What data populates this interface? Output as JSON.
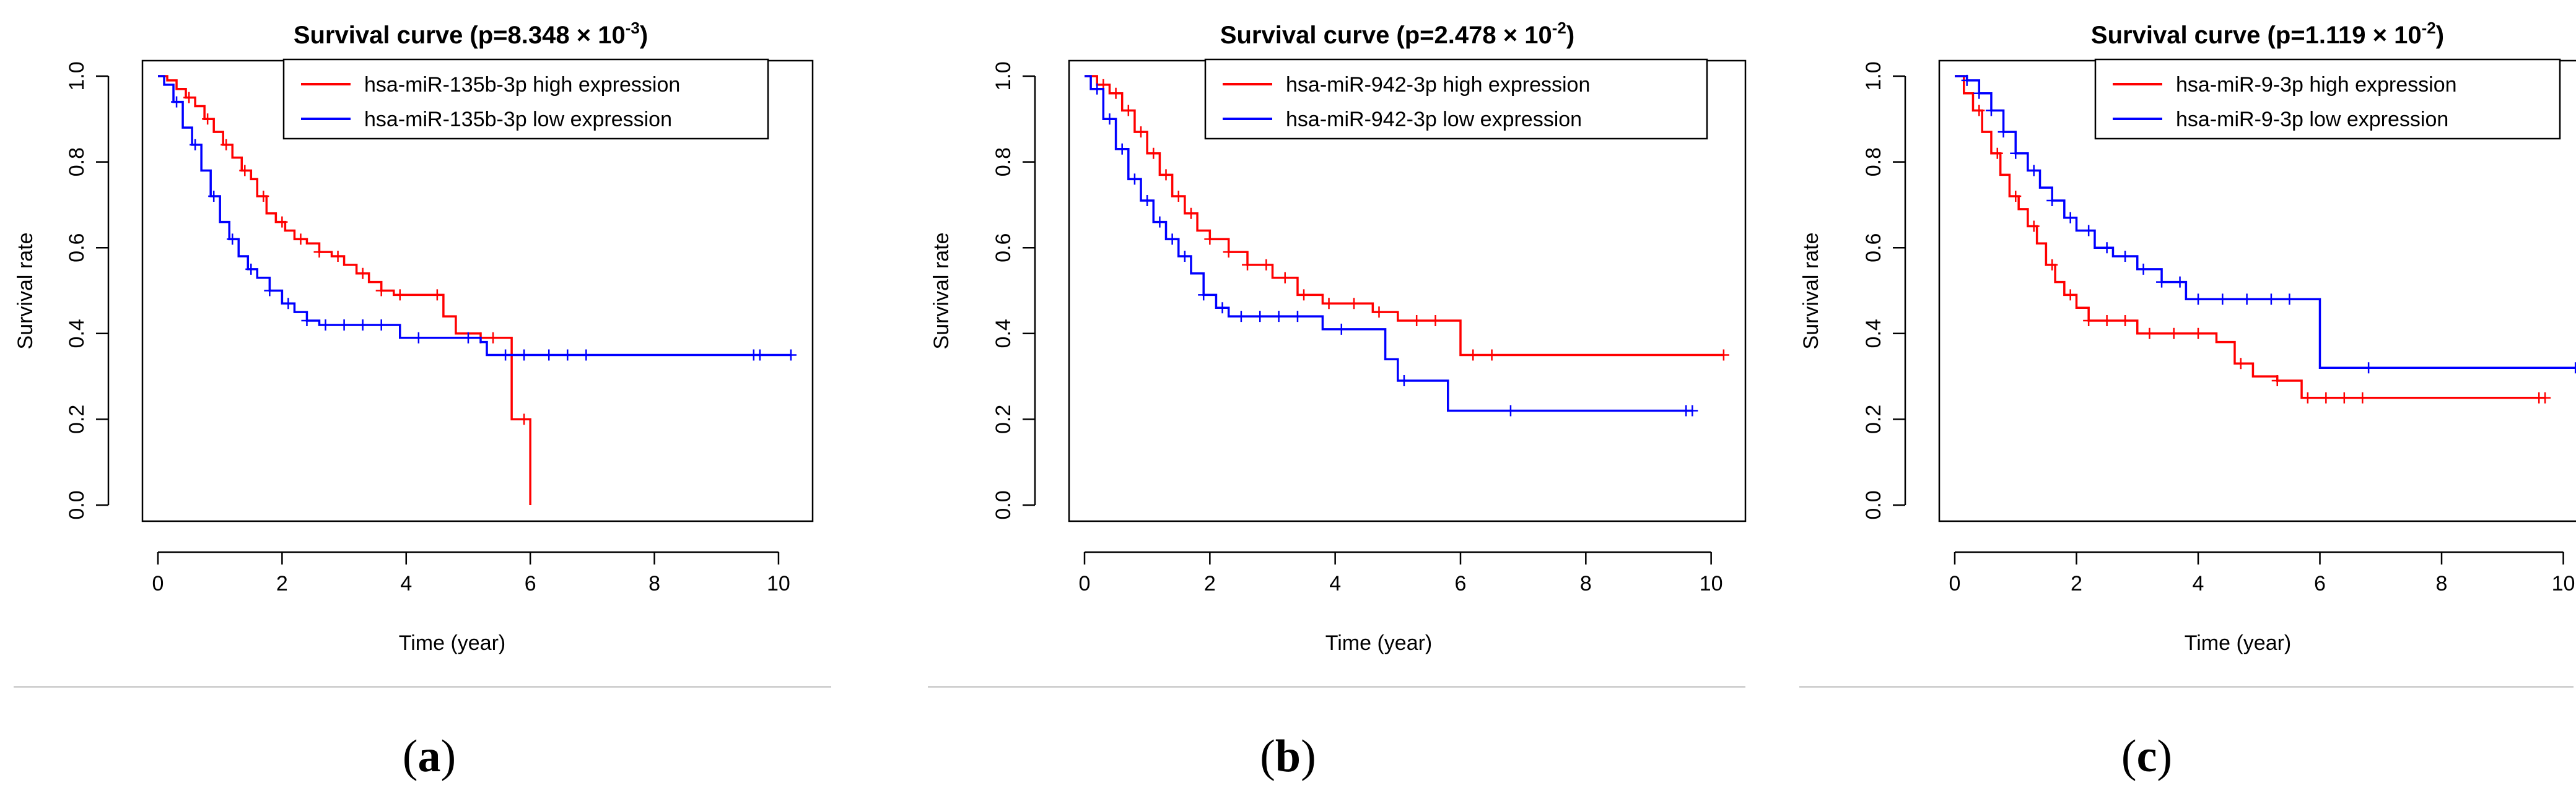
{
  "chart_data": [
    {
      "type": "line",
      "panel_label": "a",
      "title": {
        "main": "Survival curve (p=8.348 × 10",
        "exp": "-3",
        "close": ")"
      },
      "xlabel": "Time (year)",
      "ylabel": "Survival rate",
      "xlim": [
        0,
        10.3
      ],
      "ylim": [
        0,
        1
      ],
      "xticks": [
        0,
        2,
        4,
        6,
        8,
        10
      ],
      "yticks": [
        0.0,
        0.2,
        0.4,
        0.6,
        0.8,
        1.0
      ],
      "legend_position": "top-right",
      "series": [
        {
          "name": "hsa-miR-135b-3p high expression",
          "color": "#ff0000",
          "x": [
            0.0,
            0.15,
            0.3,
            0.45,
            0.6,
            0.75,
            0.9,
            1.05,
            1.2,
            1.35,
            1.5,
            1.6,
            1.75,
            1.9,
            2.05,
            2.2,
            2.4,
            2.6,
            2.8,
            3.0,
            3.2,
            3.4,
            3.6,
            3.8,
            4.6,
            4.8,
            5.2,
            5.7,
            5.95,
            6.0
          ],
          "y": [
            1.0,
            0.99,
            0.97,
            0.95,
            0.93,
            0.9,
            0.87,
            0.84,
            0.81,
            0.78,
            0.76,
            0.72,
            0.68,
            0.66,
            0.64,
            0.62,
            0.61,
            0.59,
            0.58,
            0.56,
            0.54,
            0.52,
            0.5,
            0.49,
            0.44,
            0.4,
            0.39,
            0.2,
            0.2,
            0.0
          ],
          "censor": [
            0.5,
            0.8,
            1.1,
            1.4,
            1.7,
            2.0,
            2.3,
            2.6,
            2.9,
            3.3,
            3.6,
            3.9,
            4.5,
            5.2,
            5.4,
            5.9
          ]
        },
        {
          "name": "hsa-miR-135b-3p low expression",
          "color": "#0000ff",
          "x": [
            0.0,
            0.1,
            0.25,
            0.4,
            0.55,
            0.7,
            0.85,
            1.0,
            1.15,
            1.3,
            1.45,
            1.6,
            1.8,
            2.0,
            2.2,
            2.4,
            2.6,
            3.0,
            3.9,
            5.2,
            5.3,
            10.2
          ],
          "y": [
            1.0,
            0.98,
            0.94,
            0.88,
            0.84,
            0.78,
            0.72,
            0.66,
            0.62,
            0.58,
            0.55,
            0.53,
            0.5,
            0.47,
            0.45,
            0.43,
            0.42,
            0.42,
            0.39,
            0.38,
            0.35,
            0.35
          ],
          "censor": [
            0.3,
            0.6,
            0.9,
            1.2,
            1.5,
            1.8,
            2.1,
            2.4,
            2.7,
            3.0,
            3.3,
            3.6,
            4.2,
            5.0,
            5.6,
            5.9,
            6.3,
            6.6,
            6.9,
            9.6,
            9.7,
            10.2
          ]
        }
      ]
    },
    {
      "type": "line",
      "panel_label": "b",
      "title": {
        "main": "Survival curve (p=2.478 × 10",
        "exp": "-2",
        "close": ")"
      },
      "xlabel": "Time (year)",
      "ylabel": "Survival rate",
      "xlim": [
        0,
        10.3
      ],
      "ylim": [
        0,
        1
      ],
      "xticks": [
        0,
        2,
        4,
        6,
        8,
        10
      ],
      "yticks": [
        0.0,
        0.2,
        0.4,
        0.6,
        0.8,
        1.0
      ],
      "legend_position": "top-right",
      "series": [
        {
          "name": "hsa-miR-942-3p high expression",
          "color": "#ff0000",
          "x": [
            0.0,
            0.2,
            0.4,
            0.6,
            0.8,
            1.0,
            1.2,
            1.4,
            1.6,
            1.8,
            2.0,
            2.3,
            2.6,
            3.0,
            3.4,
            3.8,
            4.6,
            5.0,
            6.0,
            10.2
          ],
          "y": [
            1.0,
            0.98,
            0.96,
            0.92,
            0.87,
            0.82,
            0.77,
            0.72,
            0.68,
            0.64,
            0.62,
            0.59,
            0.56,
            0.53,
            0.49,
            0.47,
            0.45,
            0.43,
            0.35,
            0.35
          ],
          "censor": [
            0.3,
            0.5,
            0.7,
            0.9,
            1.1,
            1.3,
            1.5,
            1.7,
            2.0,
            2.3,
            2.6,
            2.9,
            3.2,
            3.5,
            3.9,
            4.3,
            4.7,
            5.3,
            5.6,
            6.2,
            6.5,
            10.2
          ]
        },
        {
          "name": "hsa-miR-942-3p low expression",
          "color": "#0000ff",
          "x": [
            0.0,
            0.1,
            0.3,
            0.5,
            0.7,
            0.9,
            1.1,
            1.3,
            1.5,
            1.7,
            1.9,
            2.1,
            2.3,
            3.8,
            4.8,
            5.0,
            5.8,
            9.7
          ],
          "y": [
            1.0,
            0.97,
            0.9,
            0.83,
            0.76,
            0.71,
            0.66,
            0.62,
            0.58,
            0.54,
            0.49,
            0.46,
            0.44,
            0.41,
            0.34,
            0.29,
            0.22,
            0.22
          ],
          "censor": [
            0.2,
            0.4,
            0.6,
            0.8,
            1.0,
            1.2,
            1.4,
            1.6,
            1.9,
            2.2,
            2.5,
            2.8,
            3.1,
            3.4,
            4.1,
            5.1,
            6.8,
            9.6,
            9.7
          ]
        }
      ]
    },
    {
      "type": "line",
      "panel_label": "c",
      "title": {
        "main": "Survival curve (p=1.119 × 10",
        "exp": "-2",
        "close": ")"
      },
      "xlabel": "Time (year)",
      "ylabel": "Survival rate",
      "xlim": [
        0,
        10.3
      ],
      "ylim": [
        0,
        1
      ],
      "xticks": [
        0,
        2,
        4,
        6,
        8,
        10
      ],
      "yticks": [
        0.0,
        0.2,
        0.4,
        0.6,
        0.8,
        1.0
      ],
      "legend_position": "top-right",
      "series": [
        {
          "name": "hsa-miR-9-3p high expression",
          "color": "#ff0000",
          "x": [
            0.0,
            0.15,
            0.3,
            0.45,
            0.6,
            0.75,
            0.9,
            1.05,
            1.2,
            1.35,
            1.5,
            1.65,
            1.8,
            2.0,
            2.2,
            2.5,
            3.0,
            4.3,
            4.6,
            4.9,
            5.3,
            5.7,
            9.7
          ],
          "y": [
            1.0,
            0.96,
            0.92,
            0.87,
            0.82,
            0.77,
            0.72,
            0.69,
            0.65,
            0.61,
            0.56,
            0.52,
            0.49,
            0.46,
            0.43,
            0.43,
            0.4,
            0.38,
            0.33,
            0.3,
            0.29,
            0.25,
            0.25
          ],
          "censor": [
            0.4,
            0.7,
            1.0,
            1.3,
            1.6,
            1.9,
            2.2,
            2.5,
            2.8,
            3.2,
            3.6,
            4.0,
            4.7,
            5.3,
            5.8,
            6.1,
            6.4,
            6.7,
            9.6,
            9.7
          ]
        },
        {
          "name": "hsa-miR-9-3p low expression",
          "color": "#0000ff",
          "x": [
            0.0,
            0.2,
            0.4,
            0.6,
            0.8,
            1.0,
            1.2,
            1.4,
            1.6,
            1.8,
            2.0,
            2.3,
            2.6,
            3.0,
            3.4,
            3.8,
            6.0,
            10.2
          ],
          "y": [
            1.0,
            0.99,
            0.96,
            0.92,
            0.87,
            0.82,
            0.78,
            0.74,
            0.71,
            0.67,
            0.64,
            0.6,
            0.58,
            0.55,
            0.52,
            0.48,
            0.32,
            0.32
          ],
          "censor": [
            0.2,
            0.4,
            0.6,
            0.8,
            1.0,
            1.3,
            1.6,
            1.9,
            2.2,
            2.5,
            2.8,
            3.1,
            3.4,
            3.7,
            4.0,
            4.4,
            4.8,
            5.2,
            5.5,
            6.8,
            10.2
          ]
        }
      ]
    }
  ]
}
